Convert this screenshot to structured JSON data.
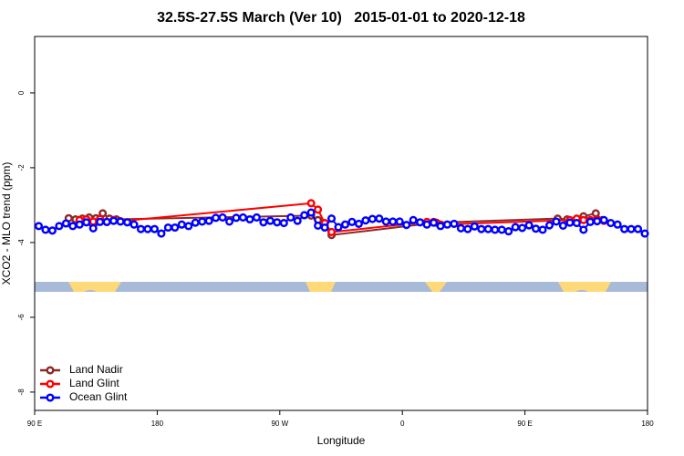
{
  "chart_data": {
    "type": "line",
    "title": "32.5S-27.5S March (Ver 10)   2015-01-01 to 2020-12-18",
    "x_label": "Longitude",
    "y_label": "XCO2 - MLO trend (ppm)",
    "xlim": [
      90,
      540
    ],
    "xticks": [
      {
        "value": 90,
        "label": "90 E"
      },
      180,
      {
        "value": 270,
        "label": "90 W"
      },
      {
        "value": 360,
        "label": "0"
      },
      {
        "value": 450,
        "label": "90 E"
      },
      {
        "value": 540,
        "label": "180"
      }
    ],
    "ylim": [
      -8.49,
      1.51
    ],
    "yticks": [
      0,
      -2,
      -4,
      -6,
      -8
    ],
    "legend": "bottom left",
    "series": [
      {
        "name": "Land Nadir",
        "color": "#8b2a2a",
        "x": [
          115,
          120,
          125,
          130,
          135,
          140,
          145,
          150,
          293,
          298,
          303,
          308,
          385,
          474,
          481,
          493,
          502,
          507
        ],
        "values": [
          -3.35,
          -3.38,
          -3.36,
          -3.33,
          -3.35,
          -3.22,
          -3.36,
          -3.38,
          -3.28,
          -3.4,
          -3.55,
          -3.8,
          -3.47,
          -3.36,
          -3.38,
          -3.3,
          -3.22,
          -3.4
        ]
      },
      {
        "name": "Land Glint",
        "color": "#ff0000",
        "x": [
          123,
          128,
          133,
          138,
          143,
          148,
          153,
          293,
          298,
          303,
          308,
          378,
          383,
          388,
          483,
          488,
          493,
          498,
          503,
          508
        ],
        "values": [
          -3.4,
          -3.38,
          -3.44,
          -3.37,
          -3.45,
          -3.4,
          -3.43,
          -2.95,
          -3.12,
          -3.48,
          -3.72,
          -3.45,
          -3.45,
          -3.52,
          -3.4,
          -3.36,
          -3.4,
          -3.4,
          -3.38,
          -3.42
        ]
      },
      {
        "name": "Ocean Glint",
        "color": "#0000ff",
        "x": [
          93,
          98,
          103,
          108,
          113,
          118,
          123,
          128,
          133,
          138,
          143,
          148,
          153,
          158,
          163,
          168,
          173,
          178,
          183,
          188,
          193,
          198,
          203,
          208,
          213,
          218,
          223,
          228,
          233,
          238,
          243,
          248,
          253,
          258,
          263,
          268,
          273,
          278,
          283,
          288,
          293,
          298,
          303,
          308,
          313,
          318,
          323,
          328,
          333,
          338,
          343,
          348,
          353,
          358,
          363,
          368,
          373,
          378,
          383,
          388,
          393,
          398,
          403,
          408,
          413,
          418,
          423,
          428,
          433,
          438,
          443,
          448,
          453,
          458,
          463,
          468,
          473,
          478,
          483,
          488,
          493,
          498,
          503,
          508,
          513,
          518,
          523,
          528,
          533,
          538
        ],
        "values": [
          -3.56,
          -3.66,
          -3.68,
          -3.56,
          -3.49,
          -3.56,
          -3.52,
          -3.46,
          -3.62,
          -3.45,
          -3.45,
          -3.42,
          -3.44,
          -3.46,
          -3.52,
          -3.64,
          -3.64,
          -3.64,
          -3.76,
          -3.6,
          -3.6,
          -3.52,
          -3.56,
          -3.47,
          -3.44,
          -3.42,
          -3.34,
          -3.33,
          -3.44,
          -3.34,
          -3.33,
          -3.38,
          -3.33,
          -3.46,
          -3.42,
          -3.46,
          -3.48,
          -3.33,
          -3.42,
          -3.27,
          -3.2,
          -3.55,
          -3.6,
          -3.36,
          -3.59,
          -3.52,
          -3.45,
          -3.5,
          -3.41,
          -3.37,
          -3.36,
          -3.44,
          -3.44,
          -3.44,
          -3.53,
          -3.4,
          -3.46,
          -3.52,
          -3.47,
          -3.56,
          -3.52,
          -3.5,
          -3.62,
          -3.64,
          -3.57,
          -3.64,
          -3.64,
          -3.66,
          -3.66,
          -3.7,
          -3.59,
          -3.61,
          -3.54,
          -3.63,
          -3.66,
          -3.54,
          -3.44,
          -3.55,
          -3.47,
          -3.48,
          -3.66,
          -3.45,
          -3.43,
          -3.4,
          -3.48,
          -3.52,
          -3.64,
          -3.64,
          -3.64,
          -3.76
        ]
      }
    ]
  }
}
